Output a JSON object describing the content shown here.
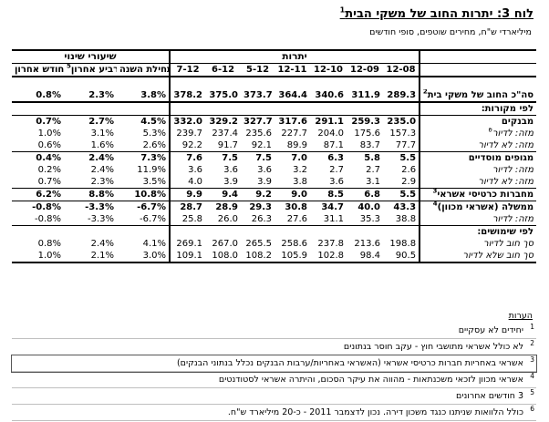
{
  "title": {
    "text": "לוח 3:  יתרות החוב של משקי הבית",
    "sup": "1"
  },
  "subtitle": "מיליארדי ש\"ח, מחירים שוטפים, סופי חודשים",
  "group_headers": {
    "change_rates": "שיעורי שינוי",
    "balances": "יתרות"
  },
  "columns": {
    "last_month": "חודש אחרון",
    "last_quarter": "רביע אחרון",
    "last_quarter_sup": "5",
    "ytd": "מתחילת השנה",
    "periods": [
      "7-12",
      "6-12",
      "5-12",
      "12-11",
      "12-10",
      "12-09",
      "12-08"
    ]
  },
  "rows": [
    {
      "label": "סה\"כ החוב של משקי בית",
      "sup": "2",
      "style": "bold",
      "rates": [
        "0.8%",
        "2.3%",
        "3.8%"
      ],
      "values": [
        "378.2",
        "375.0",
        "373.7",
        "364.4",
        "340.6",
        "311.9",
        "289.3"
      ]
    },
    {
      "label": "לפי מקורות:",
      "style": "bold",
      "rates": [
        "",
        "",
        ""
      ],
      "values": [
        "",
        "",
        "",
        "",
        "",
        "",
        ""
      ]
    },
    {
      "label": "מבנקים",
      "style": "bold",
      "rates": [
        "0.7%",
        "2.7%",
        "4.5%"
      ],
      "values": [
        "332.0",
        "329.2",
        "327.7",
        "317.6",
        "291.1",
        "259.3",
        "235.0"
      ]
    },
    {
      "label": "מזה: לדיור",
      "sup": "6",
      "style": "ital",
      "rates": [
        "1.0%",
        "3.1%",
        "5.3%"
      ],
      "values": [
        "239.7",
        "237.4",
        "235.6",
        "227.7",
        "204.0",
        "175.6",
        "157.3"
      ]
    },
    {
      "label": "מזה: לא לדיור",
      "style": "ital",
      "rates": [
        "0.6%",
        "1.6%",
        "2.6%"
      ],
      "values": [
        "92.2",
        "91.7",
        "92.1",
        "89.9",
        "87.1",
        "83.7",
        "77.7"
      ]
    },
    {
      "label": "מגופים מוסדיים",
      "style": "bold",
      "rates": [
        "0.4%",
        "2.4%",
        "7.3%"
      ],
      "values": [
        "7.6",
        "7.5",
        "7.5",
        "7.0",
        "6.3",
        "5.8",
        "5.5"
      ]
    },
    {
      "label": "מזה: לדיור",
      "style": "ital",
      "rates": [
        "0.2%",
        "2.4%",
        "11.9%"
      ],
      "values": [
        "3.6",
        "3.6",
        "3.6",
        "3.2",
        "2.7",
        "2.7",
        "2.6"
      ]
    },
    {
      "label": "מזה: לא לדיור",
      "style": "ital",
      "rates": [
        "0.7%",
        "2.3%",
        "3.5%"
      ],
      "values": [
        "4.0",
        "3.9",
        "3.9",
        "3.8",
        "3.6",
        "3.1",
        "2.9"
      ]
    },
    {
      "label": "מחברות כרטיסי אשראי",
      "sup": "3",
      "style": "bold",
      "rates": [
        "6.2%",
        "8.8%",
        "10.8%"
      ],
      "values": [
        "9.9",
        "9.4",
        "9.2",
        "9.0",
        "8.5",
        "6.8",
        "5.5"
      ]
    },
    {
      "label": "ממשלה (אשראי מכוון)",
      "sup": "4",
      "style": "bold",
      "rates": [
        "-0.8%",
        "-3.3%",
        "-6.7%"
      ],
      "values": [
        "28.7",
        "28.9",
        "29.3",
        "30.8",
        "34.7",
        "40.0",
        "43.3"
      ]
    },
    {
      "label": "מזה: לדיור",
      "style": "ital",
      "rates": [
        "-0.8%",
        "-3.3%",
        "-6.7%"
      ],
      "values": [
        "25.8",
        "26.0",
        "26.3",
        "27.6",
        "31.1",
        "35.3",
        "38.8"
      ]
    },
    {
      "label": "לפי שימושים:",
      "style": "bold",
      "rates": [
        "",
        "",
        ""
      ],
      "values": [
        "",
        "",
        "",
        "",
        "",
        "",
        ""
      ]
    },
    {
      "label": "סך חוב לדיור",
      "style": "ital",
      "rates": [
        "0.8%",
        "2.4%",
        "4.1%"
      ],
      "values": [
        "269.1",
        "267.0",
        "265.5",
        "258.6",
        "237.8",
        "213.6",
        "198.8"
      ]
    },
    {
      "label": "סך חוב שלא לדיור",
      "style": "ital",
      "rates": [
        "1.0%",
        "2.1%",
        "3.0%"
      ],
      "values": [
        "109.1",
        "108.0",
        "108.2",
        "105.9",
        "102.8",
        "98.4",
        "90.5"
      ]
    }
  ],
  "notes_header": "הערות",
  "notes": [
    {
      "num": "1",
      "text": "יחידים לא עסקיים"
    },
    {
      "num": "2",
      "text": "לא כולל אשראי מתושבי חוץ - עקב חוסר בנתונים"
    },
    {
      "num": "3",
      "text": "אשראי באחריות חברות כרטיסי אשראי (האשראי באחריות/ערבות הבנקים נכלל בנתוני הבנקים)"
    },
    {
      "num": "4",
      "text": "אשראי מכוון לזכאי משכנתאות - מהווה את עיקר הסכום, והיתרה אשראי לסטודנטים"
    },
    {
      "num": "5",
      "text": "3 חודשים אחרונים"
    },
    {
      "num": "6",
      "text": "כולל הלוואות שניתנו כנגד משכון דירה. נכון לדצמבר 2011 - כ-20 מיליארד ש\"ח."
    }
  ]
}
